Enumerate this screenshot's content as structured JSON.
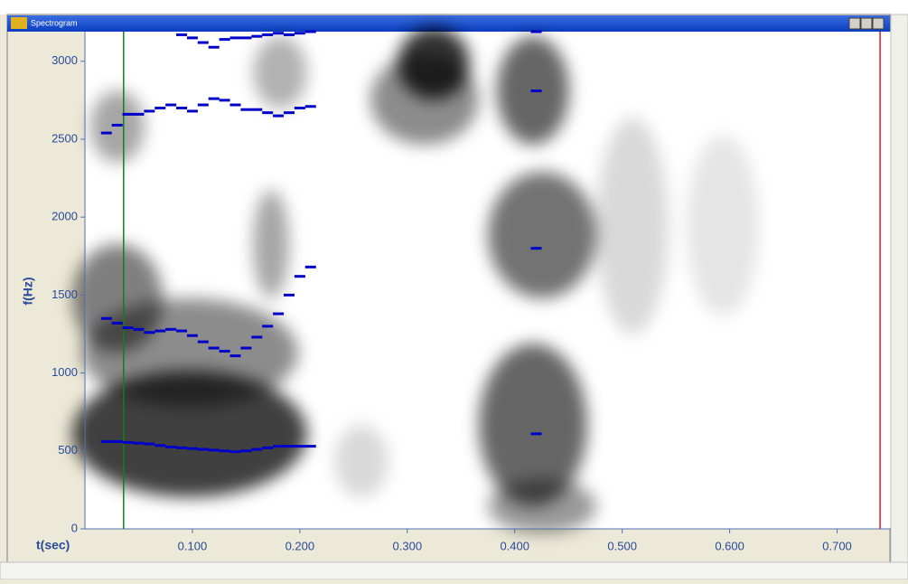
{
  "window": {
    "title": "Spectrogram"
  },
  "chart_data": {
    "type": "formant-tracks",
    "xlabel": "t(sec)",
    "ylabel": "f(Hz)",
    "xlim": [
      0,
      0.75
    ],
    "ylim": [
      0,
      3190
    ],
    "xticks": [
      {
        "value": 0.1,
        "label": "0.100"
      },
      {
        "value": 0.2,
        "label": "0.200"
      },
      {
        "value": 0.3,
        "label": "0.300"
      },
      {
        "value": 0.4,
        "label": "0.400"
      },
      {
        "value": 0.5,
        "label": "0.500"
      },
      {
        "value": 0.6,
        "label": "0.600"
      },
      {
        "value": 0.7,
        "label": "0.700"
      }
    ],
    "yticks": [
      0,
      500,
      1000,
      1500,
      2000,
      2500,
      3000
    ],
    "x": [
      0.02,
      0.03,
      0.04,
      0.05,
      0.06,
      0.07,
      0.08,
      0.09,
      0.1,
      0.11,
      0.12,
      0.13,
      0.14,
      0.15,
      0.16,
      0.17,
      0.18,
      0.19,
      0.2,
      0.21
    ],
    "series": [
      {
        "color": "#0000c8",
        "values": [
          560,
          560,
          555,
          550,
          545,
          535,
          525,
          520,
          515,
          510,
          505,
          500,
          495,
          500,
          510,
          520,
          530,
          530,
          530,
          530
        ]
      },
      {
        "color": "#0000c8",
        "values": [
          1350,
          1320,
          1290,
          1280,
          1260,
          1270,
          1280,
          1270,
          1240,
          1200,
          1160,
          1140,
          1110,
          1160,
          1230,
          1300,
          1380,
          1500,
          1620,
          1680
        ]
      },
      {
        "color": "#0000c8",
        "values": [
          2540,
          2590,
          2660,
          2660,
          2680,
          2700,
          2720,
          2700,
          2680,
          2720,
          2760,
          2750,
          2720,
          2690,
          2690,
          2670,
          2650,
          2670,
          2700,
          2710
        ]
      },
      {
        "color": "#0000c8",
        "values": [
          null,
          null,
          null,
          null,
          null,
          null,
          null,
          3170,
          3150,
          3120,
          3090,
          3140,
          3150,
          3150,
          3160,
          3170,
          3180,
          3170,
          3180,
          3190
        ]
      }
    ],
    "markers": {
      "x": 0.42,
      "color": "#0000c8",
      "values": [
        610,
        1800,
        2810,
        3190
      ]
    },
    "cursors": [
      {
        "value": 0.036,
        "color": "#1a7a1a"
      },
      {
        "value": 0.74,
        "color": "#d02020"
      }
    ]
  }
}
